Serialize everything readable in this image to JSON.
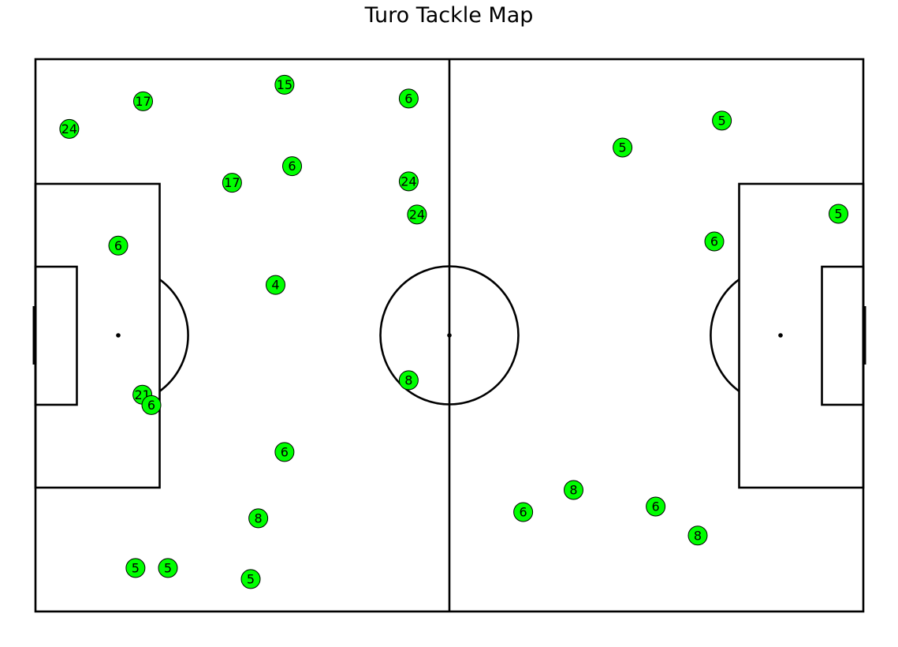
{
  "chart_data": {
    "type": "scatter",
    "title": "Turo Tackle Map",
    "xlabel": "",
    "ylabel": "",
    "xlim": [
      0,
      120
    ],
    "ylim": [
      0,
      80
    ],
    "grid": false,
    "marker_color": "#00ff00",
    "points": [
      {
        "x": 4.9,
        "y": 69.9,
        "label": "24"
      },
      {
        "x": 15.6,
        "y": 73.9,
        "label": "17"
      },
      {
        "x": 36.1,
        "y": 76.3,
        "label": "15"
      },
      {
        "x": 54.1,
        "y": 74.3,
        "label": "6"
      },
      {
        "x": 37.2,
        "y": 64.5,
        "label": "6"
      },
      {
        "x": 28.5,
        "y": 62.1,
        "label": "17"
      },
      {
        "x": 54.1,
        "y": 62.3,
        "label": "24"
      },
      {
        "x": 55.3,
        "y": 57.5,
        "label": "24"
      },
      {
        "x": 12.0,
        "y": 53.0,
        "label": "6"
      },
      {
        "x": 34.8,
        "y": 47.3,
        "label": "4"
      },
      {
        "x": 15.5,
        "y": 31.4,
        "label": "21"
      },
      {
        "x": 16.8,
        "y": 29.9,
        "label": "6"
      },
      {
        "x": 54.1,
        "y": 33.5,
        "label": "8"
      },
      {
        "x": 36.1,
        "y": 23.1,
        "label": "6"
      },
      {
        "x": 32.3,
        "y": 13.5,
        "label": "8"
      },
      {
        "x": 14.5,
        "y": 6.3,
        "label": "5"
      },
      {
        "x": 19.2,
        "y": 6.3,
        "label": "5"
      },
      {
        "x": 31.2,
        "y": 4.7,
        "label": "5"
      },
      {
        "x": 85.1,
        "y": 67.2,
        "label": "5"
      },
      {
        "x": 99.5,
        "y": 71.1,
        "label": "5"
      },
      {
        "x": 116.4,
        "y": 57.6,
        "label": "5"
      },
      {
        "x": 98.4,
        "y": 53.6,
        "label": "6"
      },
      {
        "x": 78.0,
        "y": 17.6,
        "label": "8"
      },
      {
        "x": 70.7,
        "y": 14.4,
        "label": "6"
      },
      {
        "x": 89.9,
        "y": 15.2,
        "label": "6"
      },
      {
        "x": 96.0,
        "y": 11.0,
        "label": "8"
      }
    ]
  }
}
